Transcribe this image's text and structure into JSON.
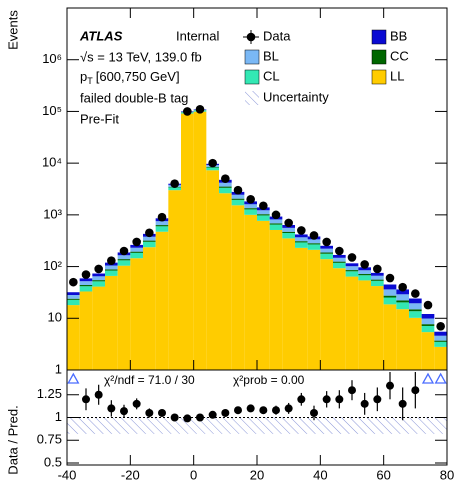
{
  "chart_data": [
    {
      "type": "stacked_histogram",
      "experiment": "ATLAS",
      "status": "Internal",
      "energy_label": "√s = 13 TeV, 139.0 fb",
      "pt_label": "p",
      "pt_sub": "T",
      "pt_range": "[600,750 GeV]",
      "selection": "failed double-B tag",
      "stage": "Pre-Fit",
      "y_label": "Events",
      "log_scale": true,
      "xlim": [
        -40,
        80
      ],
      "ylim": [
        1,
        10000000
      ],
      "yticks": [
        1,
        10,
        {
          "value": 100,
          "label": "10²"
        },
        {
          "value": 1000,
          "label": "10³"
        },
        {
          "value": 10000,
          "label": "10⁴"
        },
        {
          "value": 100000,
          "label": "10⁵"
        },
        {
          "value": 1000000,
          "label": "10⁶"
        }
      ],
      "bins": [
        -40,
        -36,
        -32,
        -28,
        -24,
        -20,
        -16,
        -12,
        -8,
        -4,
        0,
        4,
        8,
        12,
        16,
        20,
        24,
        28,
        32,
        36,
        40,
        44,
        48,
        52,
        56,
        60,
        64,
        68,
        72,
        76,
        80
      ],
      "series": [
        {
          "name": "LL",
          "color": "#ffcc00",
          "values": [
            17,
            32,
            40,
            65,
            103,
            144,
            236,
            471,
            3000,
            90900,
            99000,
            7275,
            2618,
            1529,
            1001,
            765,
            509,
            350,
            229,
            210,
            138,
            92,
            63,
            53,
            41,
            17.6,
            14,
            9.2,
            4.4,
            1.8
          ]
        },
        {
          "name": "CL",
          "color": "#33e8b4",
          "values": [
            4.7,
            8.7,
            10.8,
            17.7,
            28,
            39,
            64,
            129,
            400,
            5050,
            5500,
            970,
            714,
            417,
            273,
            209,
            139,
            95,
            63,
            57,
            38,
            25,
            17,
            14,
            11,
            6.6,
            5.3,
            3.5,
            1.7,
            0.7
          ]
        },
        {
          "name": "CC",
          "color": "#006600",
          "values": [
            1.2,
            2.3,
            2.9,
            4.7,
            7.5,
            10.4,
            17,
            34,
            80,
            1010,
            1100,
            194,
            190,
            111,
            73,
            56,
            37,
            25,
            17,
            15,
            10,
            6.7,
            4.6,
            3.8,
            3,
            2.2,
            1.8,
            1.2,
            0.6,
            0.2
          ]
        },
        {
          "name": "BL",
          "color": "#7ab8f5",
          "values": [
            4.3,
            8.1,
            10.1,
            16.5,
            26,
            37,
            60,
            120,
            320,
            2020,
            2200,
            776,
            666,
            389,
            255,
            195,
            130,
            89,
            58,
            53,
            35,
            23,
            16,
            13,
            10.5,
            8.8,
            7,
            4.6,
            2.2,
            0.9
          ]
        },
        {
          "name": "BB",
          "color": "#0a0ad2",
          "values": [
            3.7,
            7.0,
            8.6,
            14.2,
            22,
            31,
            51,
            103,
            200,
            2020,
            2200,
            485,
            571,
            334,
            218,
            167,
            111,
            76,
            50,
            46,
            30,
            20,
            14,
            12,
            9,
            8.8,
            7,
            4.6,
            2.2,
            0.9
          ]
        }
      ],
      "data": {
        "name": "Data",
        "color": "#000000",
        "values": [
          50,
          70,
          90,
          130,
          200,
          300,
          450,
          900,
          4000,
          100000,
          110000,
          10000,
          5000,
          3000,
          2000,
          1500,
          1000,
          700,
          500,
          400,
          300,
          200,
          150,
          110,
          90,
          60,
          40,
          30,
          18,
          7
        ]
      },
      "uncertainty_name": "Uncertainty"
    },
    {
      "type": "errorbar",
      "y_label": "Data / Pred.",
      "chi2_text": "χ²/ndf = 71.0 / 30",
      "prob_text": "χ²prob = 0.00",
      "xlim": [
        -40,
        80
      ],
      "xticks": [
        -40,
        -20,
        0,
        20,
        40,
        60,
        80
      ],
      "ylim": [
        0.5,
        1.5
      ],
      "yticks": [
        0.5,
        0.75,
        1,
        1.25
      ],
      "reference": 1,
      "x": [
        -38,
        -34,
        -30,
        -26,
        -22,
        -18,
        -14,
        -10,
        -6,
        -2,
        2,
        6,
        10,
        14,
        18,
        22,
        26,
        30,
        34,
        38,
        42,
        46,
        50,
        54,
        58,
        62,
        66,
        70,
        74,
        78
      ],
      "values": [
        1.6,
        1.2,
        1.25,
        1.1,
        1.07,
        1.15,
        1.05,
        1.05,
        1.0,
        0.99,
        1.0,
        1.03,
        1.05,
        1.08,
        1.1,
        1.08,
        1.08,
        1.1,
        1.2,
        1.05,
        1.2,
        1.2,
        1.3,
        1.15,
        1.2,
        1.35,
        1.15,
        1.3,
        1.6,
        1.6
      ],
      "errors": [
        0.15,
        0.12,
        0.11,
        0.09,
        0.07,
        0.06,
        0.05,
        0.04,
        0.02,
        0.01,
        0.01,
        0.02,
        0.03,
        0.03,
        0.04,
        0.04,
        0.05,
        0.06,
        0.07,
        0.08,
        0.09,
        0.1,
        0.11,
        0.12,
        0.13,
        0.15,
        0.18,
        0.2,
        0.25,
        0.3
      ],
      "band": [
        0.82,
        1.0
      ],
      "marker_color": "#000000",
      "overflow_color": "#4a6cff"
    }
  ]
}
